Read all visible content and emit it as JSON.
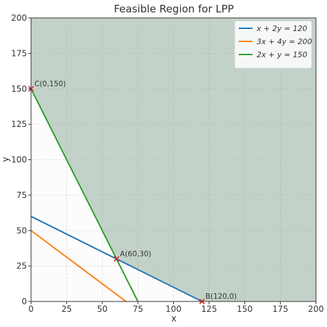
{
  "chart_data": {
    "type": "line",
    "title": "Feasible Region for LPP",
    "xlabel": "x",
    "ylabel": "y",
    "xlim": [
      0,
      200
    ],
    "ylim": [
      0,
      200
    ],
    "xticks": [
      0,
      25,
      50,
      75,
      100,
      125,
      150,
      175,
      200
    ],
    "yticks": [
      0,
      25,
      50,
      75,
      100,
      125,
      150,
      175,
      200
    ],
    "grid": true,
    "legend_position": "top-right",
    "series": [
      {
        "name": "x + 2y = 120",
        "color": "#1f77b4",
        "points": [
          [
            0,
            60
          ],
          [
            120,
            0
          ]
        ]
      },
      {
        "name": "3x + 4y = 200",
        "color": "#ff7f0e",
        "points": [
          [
            0,
            50
          ],
          [
            66.67,
            0
          ]
        ]
      },
      {
        "name": "2x + y = 150",
        "color": "#2ca02c",
        "points": [
          [
            0,
            150
          ],
          [
            75,
            0
          ]
        ]
      }
    ],
    "feasible_region": {
      "color": "#c3d2c8",
      "points": [
        [
          0,
          150
        ],
        [
          0,
          200
        ],
        [
          200,
          200
        ],
        [
          200,
          0
        ],
        [
          120,
          0
        ],
        [
          60,
          30
        ]
      ]
    },
    "annotations": [
      {
        "label": "C(0,150)",
        "x": 0,
        "y": 150
      },
      {
        "label": "A(60,30)",
        "x": 60,
        "y": 30
      },
      {
        "label": "B(120,0)",
        "x": 120,
        "y": 0
      }
    ],
    "marker_color": "#d62728"
  }
}
